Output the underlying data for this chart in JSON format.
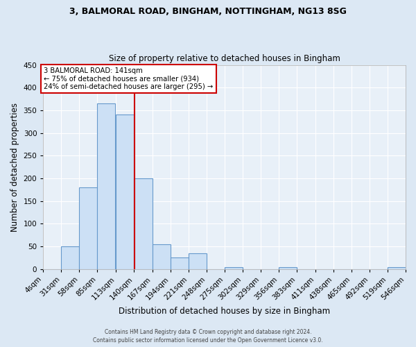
{
  "title1": "3, BALMORAL ROAD, BINGHAM, NOTTINGHAM, NG13 8SG",
  "title2": "Size of property relative to detached houses in Bingham",
  "xlabel": "Distribution of detached houses by size in Bingham",
  "ylabel": "Number of detached properties",
  "bin_edges": [
    4,
    31,
    58,
    85,
    113,
    140,
    167,
    194,
    221,
    248,
    275,
    302,
    329,
    356,
    383,
    411,
    438,
    465,
    492,
    519,
    546
  ],
  "bar_heights": [
    0,
    50,
    180,
    365,
    340,
    200,
    55,
    25,
    35,
    0,
    5,
    0,
    0,
    5,
    0,
    0,
    0,
    0,
    0,
    5
  ],
  "bar_color": "#cce0f5",
  "bar_edge_color": "#6699cc",
  "red_line_x": 141,
  "annotation_title": "3 BALMORAL ROAD: 141sqm",
  "annotation_line1": "← 75% of detached houses are smaller (934)",
  "annotation_line2": "24% of semi-detached houses are larger (295) →",
  "annotation_box_color": "#ffffff",
  "annotation_box_edge": "#cc0000",
  "red_line_color": "#cc0000",
  "ylim": [
    0,
    450
  ],
  "xlim": [
    4,
    546
  ],
  "background_color": "#e8f0f8",
  "fig_background_color": "#dce8f4",
  "grid_color": "#ffffff",
  "footer1": "Contains HM Land Registry data © Crown copyright and database right 2024.",
  "footer2": "Contains public sector information licensed under the Open Government Licence v3.0."
}
